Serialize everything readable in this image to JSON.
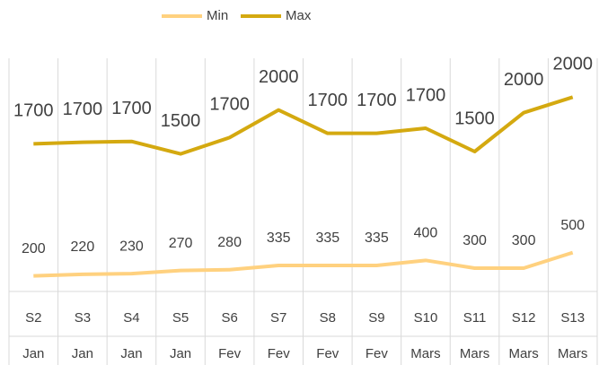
{
  "chart_data": {
    "type": "line",
    "stacked": true,
    "categories": [
      [
        "S2",
        "Jan"
      ],
      [
        "S3",
        "Jan"
      ],
      [
        "S4",
        "Jan"
      ],
      [
        "S5",
        "Jan"
      ],
      [
        "S6",
        "Fev"
      ],
      [
        "S7",
        "Fev"
      ],
      [
        "S8",
        "Fev"
      ],
      [
        "S9",
        "Fev"
      ],
      [
        "S10",
        "Mars"
      ],
      [
        "S11",
        "Mars"
      ],
      [
        "S12",
        "Mars"
      ],
      [
        "S13",
        "Mars"
      ]
    ],
    "series": [
      {
        "name": "Min",
        "color": "#ffd17f",
        "values": [
          200,
          220,
          230,
          270,
          280,
          335,
          335,
          335,
          400,
          300,
          300,
          500
        ]
      },
      {
        "name": "Max",
        "color": "#d4a910",
        "values": [
          1700,
          1700,
          1700,
          1500,
          1700,
          2000,
          1700,
          1700,
          1700,
          1500,
          2000,
          2000
        ]
      }
    ],
    "ylim": [
      0,
      3000
    ],
    "legend": "top"
  }
}
